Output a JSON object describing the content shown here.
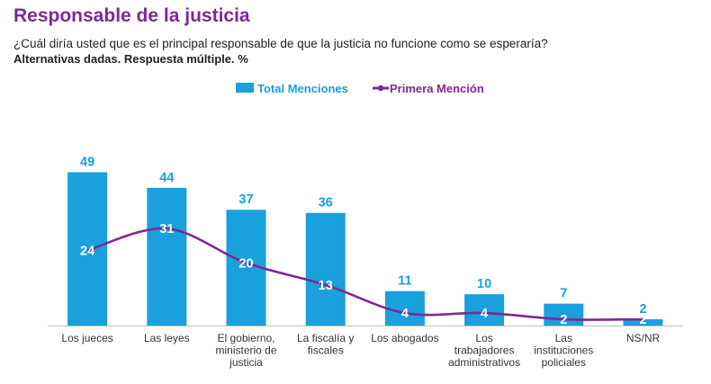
{
  "page": {
    "title": "Responsable de la justicia",
    "question": "¿Cuál diría usted que es el principal responsable de que la justicia no funcione como se esperaría?",
    "subtitle": "Alternativas dadas. Respuesta múltiple. %"
  },
  "chart_data": {
    "type": "bar",
    "categories": [
      "Los jueces",
      "Las leyes",
      "El gobierno, ministerio de justicia",
      "La fiscalía y fiscales",
      "Los abogados",
      "Los trabajadores administrativos",
      "Las instituciones policiales",
      "NS/NR"
    ],
    "series": [
      {
        "name": "Total Menciones",
        "type": "bar",
        "color": "#1aa0dc",
        "values": [
          49,
          44,
          37,
          36,
          11,
          10,
          7,
          2
        ]
      },
      {
        "name": "Primera Mención",
        "type": "line",
        "color": "#7b2a96",
        "values": [
          24,
          31,
          20,
          13,
          4,
          4,
          2,
          2
        ]
      }
    ],
    "legend_position": "top-center",
    "grid": false,
    "ylim": [
      0,
      50
    ]
  }
}
